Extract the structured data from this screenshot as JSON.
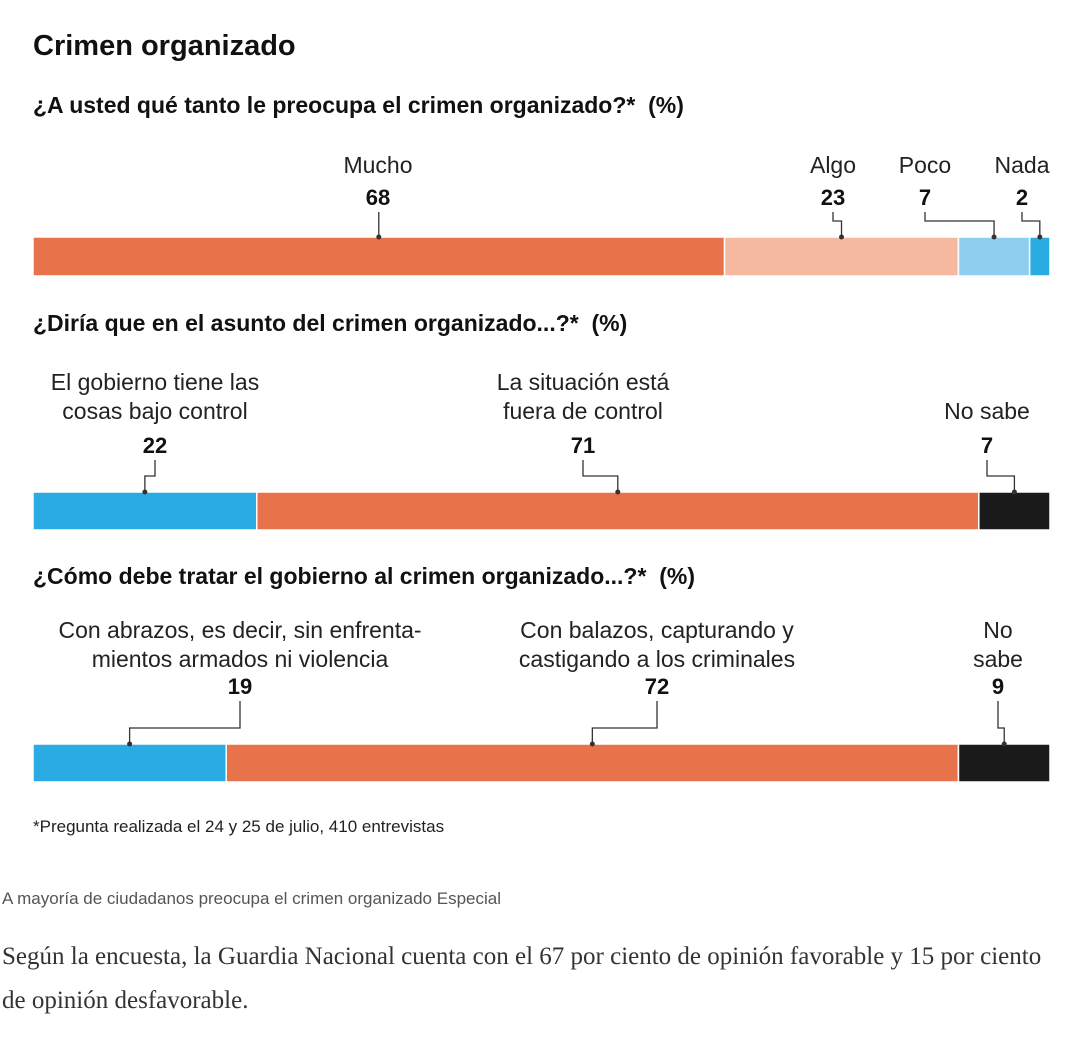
{
  "title": "Crimen organizado",
  "chart_data": [
    {
      "type": "stacked-bar",
      "title": "¿A usted qué tanto le preocupa el crimen organizado?*  (%)",
      "series": [
        {
          "name": "Mucho",
          "color": "#e8734a",
          "values": [
            68
          ]
        },
        {
          "name": "Algo",
          "color": "#f4b9a0",
          "values": [
            23
          ]
        },
        {
          "name": "Poco",
          "color": "#8ecfef",
          "values": [
            7
          ]
        },
        {
          "name": "Nada",
          "color": "#2aabe2",
          "values": [
            2
          ]
        }
      ],
      "xlim": [
        0,
        100
      ]
    },
    {
      "type": "stacked-bar",
      "title": "¿Diría que en el asunto del crimen organizado...?*  (%)",
      "series": [
        {
          "name": "El gobierno tiene las\ncosas bajo control",
          "color": "#2aabe2",
          "values": [
            22
          ]
        },
        {
          "name": "La situación está\nfuera de control",
          "color": "#e8734a",
          "values": [
            71
          ]
        },
        {
          "name": "No sabe",
          "color": "#1a1a1a",
          "values": [
            7
          ]
        }
      ],
      "xlim": [
        0,
        100
      ]
    },
    {
      "type": "stacked-bar",
      "title": "¿Cómo debe tratar el gobierno al crimen organizado...?*  (%)",
      "series": [
        {
          "name": "Con abrazos, es decir, sin enfrenta-\nmientos armados ni violencia",
          "color": "#2aabe2",
          "values": [
            19
          ]
        },
        {
          "name": "Con balazos, capturando y\ncastigando a los criminales",
          "color": "#e8734a",
          "values": [
            72
          ]
        },
        {
          "name": "No sabe",
          "color": "#1a1a1a",
          "values": [
            9
          ]
        }
      ],
      "xlim": [
        0,
        100
      ]
    }
  ],
  "footnote": "*Pregunta realizada el 24 y 25 de julio, 410 entrevistas",
  "caption": "A mayoría de ciudadanos preocupa el crimen organizado",
  "credit": "Especial",
  "paragraph": "Según la encuesta, la Guardia Nacional cuenta con el 67 por ciento de opinión favorable y 15 por ciento de opinión desfavorable."
}
